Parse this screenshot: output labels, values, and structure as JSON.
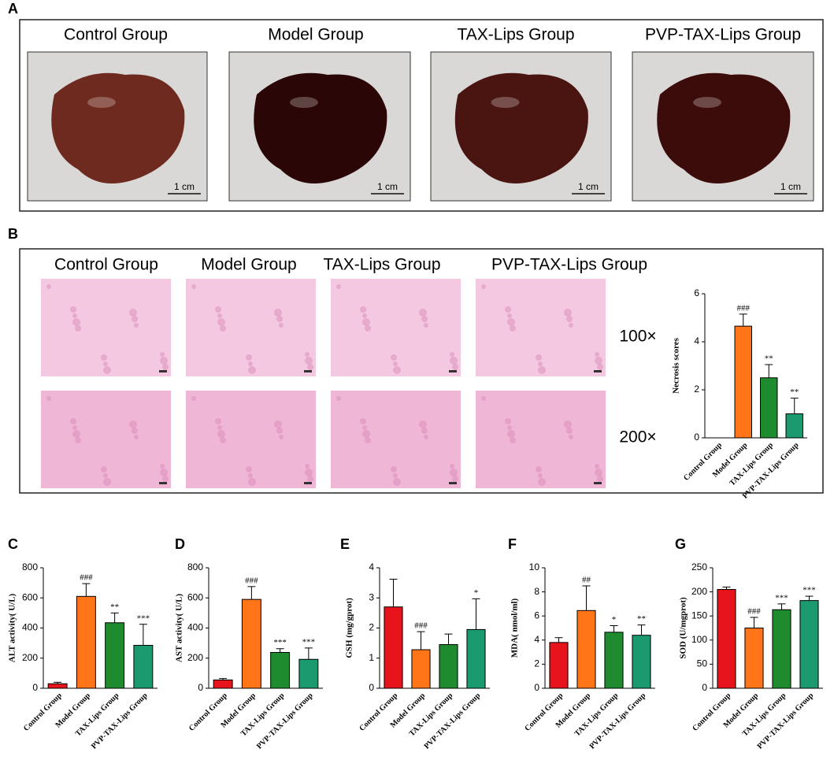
{
  "panel_a": {
    "label": "A",
    "titles": [
      "Control Group",
      "Model Group",
      "TAX-Lips Group",
      "PVP-TAX-Lips Group"
    ],
    "scale_label": "1 cm"
  },
  "panel_b": {
    "label": "B",
    "titles": [
      "Control Group",
      "Model Group",
      "TAX-Lips Group",
      "PVP-TAX-Lips Group"
    ],
    "magnifications": [
      "100×",
      "200×"
    ]
  },
  "chart_data": [
    {
      "type": "bar",
      "ylabel": "Necrosis scores",
      "categories": [
        "Control Group",
        "Model Group",
        "TAX-Lips Group",
        "PVP-TAX-Lips Group"
      ],
      "values": [
        0,
        4.65,
        2.5,
        1.0
      ],
      "errors": [
        0,
        0.5,
        0.55,
        0.65
      ],
      "annotations": [
        null,
        "###",
        "**",
        "**"
      ],
      "colors": [
        "#e8141c",
        "#ff7518",
        "#1e8b2e",
        "#1a9a6e"
      ],
      "ylim": [
        0,
        6
      ],
      "yticks": [
        0,
        2,
        4,
        6
      ]
    },
    {
      "type": "bar",
      "panel_label": "C",
      "ylabel": "ALT activity( U/L)",
      "categories": [
        "Control Group",
        "Model Group",
        "TAX-Lips Group",
        "PVP-TAX-Lips Group"
      ],
      "values": [
        30,
        610,
        435,
        285
      ],
      "errors": [
        10,
        85,
        65,
        140
      ],
      "annotations": [
        null,
        "###",
        "**",
        "***"
      ],
      "colors": [
        "#e8141c",
        "#ff7518",
        "#1e8b2e",
        "#1a9a6e"
      ],
      "ylim": [
        0,
        800
      ],
      "yticks": [
        0,
        200,
        400,
        600,
        800
      ]
    },
    {
      "type": "bar",
      "panel_label": "D",
      "ylabel": "AST activity( U/L)",
      "categories": [
        "Control Group",
        "Model Group",
        "TAX-Lips Group",
        "PVP-TAX-Lips Group"
      ],
      "values": [
        55,
        590,
        238,
        192
      ],
      "errors": [
        10,
        85,
        25,
        75
      ],
      "annotations": [
        null,
        "###",
        "***",
        "***"
      ],
      "colors": [
        "#e8141c",
        "#ff7518",
        "#1e8b2e",
        "#1a9a6e"
      ],
      "ylim": [
        0,
        800
      ],
      "yticks": [
        0,
        200,
        400,
        600,
        800
      ]
    },
    {
      "type": "bar",
      "panel_label": "E",
      "ylabel": "GSH (mg/gprot)",
      "categories": [
        "Control Group",
        "Model Group",
        "TAX-Lips Group",
        "PVP-TAX-Lips Group"
      ],
      "values": [
        2.7,
        1.28,
        1.45,
        1.95
      ],
      "errors": [
        0.92,
        0.6,
        0.35,
        1.02
      ],
      "annotations": [
        null,
        "###",
        null,
        "*"
      ],
      "colors": [
        "#e8141c",
        "#ff7518",
        "#1e8b2e",
        "#1a9a6e"
      ],
      "ylim": [
        0,
        4
      ],
      "yticks": [
        0,
        1,
        2,
        3,
        4
      ]
    },
    {
      "type": "bar",
      "panel_label": "F",
      "ylabel": "MDA( nmol/ml)",
      "categories": [
        "Control Group",
        "Model Group",
        "TAX-Lips Group",
        "PVP-TAX-Lips Group"
      ],
      "values": [
        3.8,
        6.45,
        4.65,
        4.4
      ],
      "errors": [
        0.4,
        2.05,
        0.55,
        0.85
      ],
      "annotations": [
        null,
        "##",
        "*",
        "**"
      ],
      "colors": [
        "#e8141c",
        "#ff7518",
        "#1e8b2e",
        "#1a9a6e"
      ],
      "ylim": [
        0,
        10
      ],
      "yticks": [
        0,
        2,
        4,
        6,
        8,
        10
      ]
    },
    {
      "type": "bar",
      "panel_label": "G",
      "ylabel": "SOD (U/mgprot)",
      "categories": [
        "Control Group",
        "Model Group",
        "TAX-Lips Group",
        "PVP-TAX-Lips Group"
      ],
      "values": [
        205,
        125,
        163,
        182
      ],
      "errors": [
        5,
        22,
        12,
        9
      ],
      "annotations": [
        null,
        "###",
        "***",
        "***"
      ],
      "colors": [
        "#e8141c",
        "#ff7518",
        "#1e8b2e",
        "#1a9a6e"
      ],
      "ylim": [
        0,
        250
      ],
      "yticks": [
        0,
        50,
        100,
        150,
        200,
        250
      ]
    }
  ]
}
